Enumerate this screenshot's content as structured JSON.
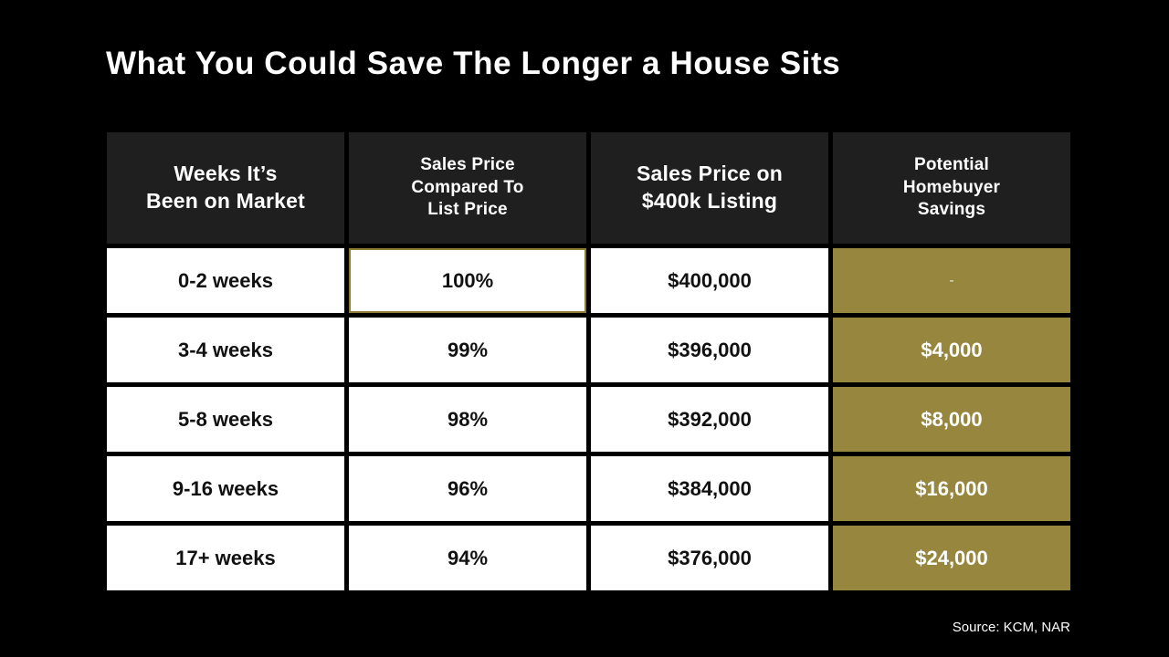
{
  "page": {
    "title": "What You Could Save The Longer a House Sits",
    "source": "Source: KCM, NAR",
    "colors": {
      "background": "#000000",
      "header_bg": "#1F1F1F",
      "cell_bg": "#FFFFFF",
      "accent_gold": "#97863E",
      "highlight_border": "#8E7D33",
      "title_text": "#FFFFFF",
      "body_text": "#111111"
    }
  },
  "table": {
    "headers": [
      "Weeks It’s\nBeen on Market",
      "Sales Price\nCompared To\nList Price",
      "Sales Price on\n$400k Listing",
      "Potential\nHomebuyer\nSavings"
    ],
    "rows": [
      {
        "weeks": "0-2 weeks",
        "pct": "100%",
        "price": "$400,000",
        "savings": "-"
      },
      {
        "weeks": "3-4 weeks",
        "pct": "99%",
        "price": "$396,000",
        "savings": "$4,000"
      },
      {
        "weeks": "5-8 weeks",
        "pct": "98%",
        "price": "$392,000",
        "savings": "$8,000"
      },
      {
        "weeks": "9-16 weeks",
        "pct": "96%",
        "price": "$384,000",
        "savings": "$16,000"
      },
      {
        "weeks": "17+ weeks",
        "pct": "94%",
        "price": "$376,000",
        "savings": "$24,000"
      }
    ]
  },
  "chart_data": {
    "type": "table",
    "title": "What You Could Save The Longer a House Sits",
    "columns": [
      "Weeks It’s Been on Market",
      "Sales Price Compared To List Price",
      "Sales Price on $400k Listing",
      "Potential Homebuyer Savings"
    ],
    "rows": [
      [
        "0-2 weeks",
        "100%",
        "$400,000",
        "-"
      ],
      [
        "3-4 weeks",
        "99%",
        "$396,000",
        "$4,000"
      ],
      [
        "5-8 weeks",
        "98%",
        "$392,000",
        "$8,000"
      ],
      [
        "9-16 weeks",
        "96%",
        "$384,000",
        "$16,000"
      ],
      [
        "17+ weeks",
        "94%",
        "$376,000",
        "$24,000"
      ]
    ],
    "source": "Source: KCM, NAR"
  }
}
